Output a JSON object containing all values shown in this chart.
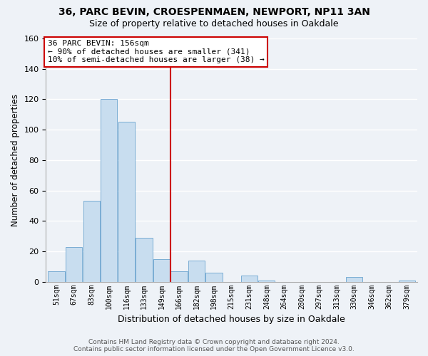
{
  "title": "36, PARC BEVIN, CROESPENMAEN, NEWPORT, NP11 3AN",
  "subtitle": "Size of property relative to detached houses in Oakdale",
  "xlabel": "Distribution of detached houses by size in Oakdale",
  "ylabel": "Number of detached properties",
  "bar_color": "#c8ddef",
  "bar_edge_color": "#7aadd4",
  "background_color": "#eef2f7",
  "grid_color": "#ffffff",
  "categories": [
    "51sqm",
    "67sqm",
    "83sqm",
    "100sqm",
    "116sqm",
    "133sqm",
    "149sqm",
    "166sqm",
    "182sqm",
    "198sqm",
    "215sqm",
    "231sqm",
    "248sqm",
    "264sqm",
    "280sqm",
    "297sqm",
    "313sqm",
    "330sqm",
    "346sqm",
    "362sqm",
    "379sqm"
  ],
  "values": [
    7,
    23,
    53,
    120,
    105,
    29,
    15,
    7,
    14,
    6,
    0,
    4,
    1,
    0,
    0,
    0,
    0,
    3,
    0,
    0,
    1
  ],
  "ylim": [
    0,
    160
  ],
  "yticks": [
    0,
    20,
    40,
    60,
    80,
    100,
    120,
    140,
    160
  ],
  "vline_x_index": 6.5,
  "vline_color": "#cc0000",
  "annotation_title": "36 PARC BEVIN: 156sqm",
  "annotation_line1": "← 90% of detached houses are smaller (341)",
  "annotation_line2": "10% of semi-detached houses are larger (38) →",
  "annotation_box_color": "white",
  "annotation_box_edge": "#cc0000",
  "footer_line1": "Contains HM Land Registry data © Crown copyright and database right 2024.",
  "footer_line2": "Contains public sector information licensed under the Open Government Licence v3.0."
}
